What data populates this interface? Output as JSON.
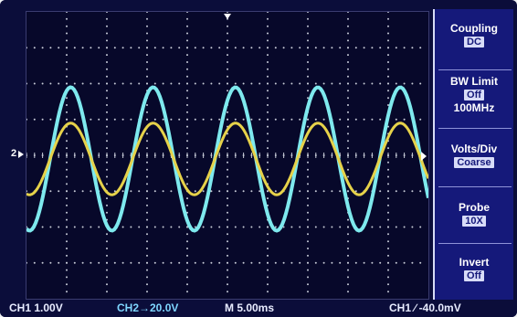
{
  "colors": {
    "background": "#0b0d3a",
    "grid": "#c8ccd8",
    "ch1_trace": "#e6d24a",
    "ch2_trace": "#7ee9ee",
    "menu_bg": "#15197a"
  },
  "display": {
    "h_divisions": 10,
    "v_divisions": 8,
    "ch1_ground_marker": "2",
    "ch1_waveform": {
      "amplitude_div": 1.0,
      "period_div": 2.05,
      "phase_div": 1.1
    },
    "ch2_waveform": {
      "amplitude_div": 2.0,
      "period_div": 2.05,
      "phase_div": 1.1
    }
  },
  "menu": {
    "coupling": {
      "title": "Coupling",
      "value": "DC"
    },
    "bw_limit": {
      "title": "BW Limit",
      "value": "Off",
      "extra": "100MHz"
    },
    "volts_div": {
      "title": "Volts/Div",
      "value": "Coarse"
    },
    "probe": {
      "title": "Probe",
      "value": "10X"
    },
    "invert": {
      "title": "Invert",
      "value": "Off"
    }
  },
  "status": {
    "ch1": "CH1  1.00V",
    "ch2": "CH2→20.0V",
    "timebase": "M 5.00ms",
    "trigger": "CH1  ∕  -40.0mV"
  }
}
